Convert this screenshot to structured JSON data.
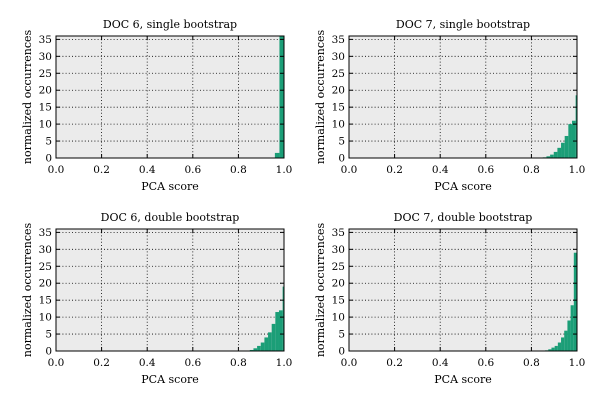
{
  "colors": {
    "bar": "#1b9e77",
    "plot_bg": "#ebebeb",
    "grid": "#000000"
  },
  "chart_data": [
    {
      "type": "bar",
      "title": "DOC 6, single bootstrap",
      "xlabel": "PCA score",
      "ylabel": "normalized occurrences",
      "xlim": [
        0.0,
        1.0
      ],
      "ylim": [
        0,
        36
      ],
      "xticks": [
        "0.0",
        "0.2",
        "0.4",
        "0.6",
        "0.8",
        "1.0"
      ],
      "yticks": [
        "0",
        "5",
        "10",
        "15",
        "20",
        "25",
        "30",
        "35"
      ],
      "grid": true,
      "bin_width": 0.02,
      "bins": [
        {
          "x0": 0.96,
          "value": 1.5
        },
        {
          "x0": 0.98,
          "value": 36
        }
      ]
    },
    {
      "type": "bar",
      "title": "DOC 7, single bootstrap",
      "xlabel": "PCA score",
      "ylabel": "normalized occurrences",
      "xlim": [
        0.0,
        1.0
      ],
      "ylim": [
        0,
        36
      ],
      "xticks": [
        "0.0",
        "0.2",
        "0.4",
        "0.6",
        "0.8",
        "1.0"
      ],
      "yticks": [
        "0",
        "5",
        "10",
        "15",
        "20",
        "25",
        "30",
        "35"
      ],
      "grid": true,
      "bin_width": 0.016,
      "bins": [
        {
          "x0": 0.85,
          "value": 0.2
        },
        {
          "x0": 0.866,
          "value": 0.5
        },
        {
          "x0": 0.882,
          "value": 1.0
        },
        {
          "x0": 0.898,
          "value": 1.8
        },
        {
          "x0": 0.914,
          "value": 3.0
        },
        {
          "x0": 0.93,
          "value": 4.5
        },
        {
          "x0": 0.946,
          "value": 6.5
        },
        {
          "x0": 0.962,
          "value": 10.0
        },
        {
          "x0": 0.978,
          "value": 11.0
        },
        {
          "x0": 0.994,
          "value": 18.5
        }
      ]
    },
    {
      "type": "bar",
      "title": "DOC 6, double bootstrap",
      "xlabel": "PCA score",
      "ylabel": "normalized occurrences",
      "xlim": [
        0.0,
        1.0
      ],
      "ylim": [
        0,
        36
      ],
      "xticks": [
        "0.0",
        "0.2",
        "0.4",
        "0.6",
        "0.8",
        "1.0"
      ],
      "yticks": [
        "0",
        "5",
        "10",
        "15",
        "20",
        "25",
        "30",
        "35"
      ],
      "grid": true,
      "bin_width": 0.016,
      "bins": [
        {
          "x0": 0.85,
          "value": 0.3
        },
        {
          "x0": 0.866,
          "value": 0.8
        },
        {
          "x0": 0.882,
          "value": 1.5
        },
        {
          "x0": 0.898,
          "value": 2.5
        },
        {
          "x0": 0.914,
          "value": 4.0
        },
        {
          "x0": 0.93,
          "value": 5.5
        },
        {
          "x0": 0.946,
          "value": 8.0
        },
        {
          "x0": 0.962,
          "value": 11.5
        },
        {
          "x0": 0.978,
          "value": 12.0
        },
        {
          "x0": 0.994,
          "value": 19.0
        }
      ]
    },
    {
      "type": "bar",
      "title": "DOC 7, double bootstrap",
      "xlabel": "PCA score",
      "ylabel": "normalized occurrences",
      "xlim": [
        0.0,
        1.0
      ],
      "ylim": [
        0,
        36
      ],
      "xticks": [
        "0.0",
        "0.2",
        "0.4",
        "0.6",
        "0.8",
        "1.0"
      ],
      "yticks": [
        "0",
        "5",
        "10",
        "15",
        "20",
        "25",
        "30",
        "35"
      ],
      "grid": true,
      "bin_width": 0.014,
      "bins": [
        {
          "x0": 0.86,
          "value": 0.2
        },
        {
          "x0": 0.874,
          "value": 0.5
        },
        {
          "x0": 0.888,
          "value": 1.0
        },
        {
          "x0": 0.902,
          "value": 1.5
        },
        {
          "x0": 0.916,
          "value": 2.5
        },
        {
          "x0": 0.93,
          "value": 4.0
        },
        {
          "x0": 0.944,
          "value": 6.0
        },
        {
          "x0": 0.958,
          "value": 9.0
        },
        {
          "x0": 0.972,
          "value": 13.5
        },
        {
          "x0": 0.986,
          "value": 29.0
        }
      ]
    }
  ]
}
